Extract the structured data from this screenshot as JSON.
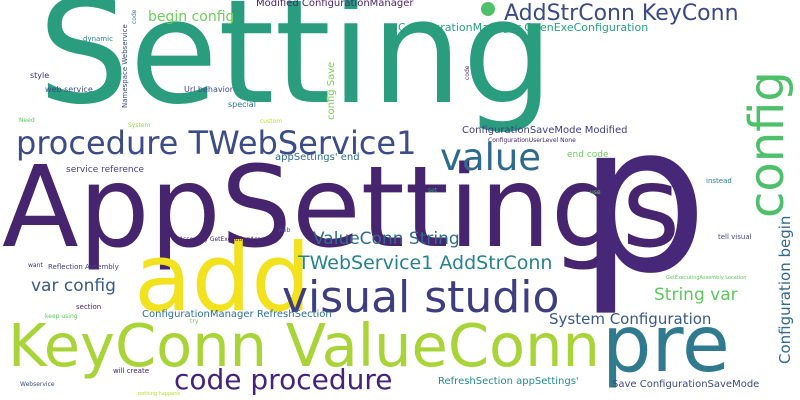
{
  "words": [
    {
      "text": "Setting",
      "color": "#2a9d7f"
    },
    {
      "text": "AppSettings",
      "color": "#46246e"
    },
    {
      "text": "p",
      "color": "#472878"
    },
    {
      "text": "add",
      "color": "#f2e11d"
    },
    {
      "text": "KeyConn ValueConn",
      "color": "#a8d437"
    },
    {
      "text": "pre",
      "color": "#2f7a8e"
    },
    {
      "text": "config",
      "color": "#4fc06a"
    },
    {
      "text": "visual studio",
      "color": "#3e3d80"
    },
    {
      "text": "value",
      "color": "#2d6a8e"
    },
    {
      "text": "procedure TWebService1",
      "color": "#3b4c86"
    },
    {
      "text": "code procedure",
      "color": "#45237a"
    },
    {
      "text": "AddStrConn KeyConn",
      "color": "#3b4a85"
    },
    {
      "text": "TWebService1 AddStrConn",
      "color": "#26838e"
    },
    {
      "text": "ValueConn String",
      "color": "#2f6b8e"
    },
    {
      "text": "String var",
      "color": "#5ec75e"
    },
    {
      "text": "var config",
      "color": "#38598c"
    },
    {
      "text": "System Configuration",
      "color": "#38598c"
    },
    {
      "text": "Configuration begin",
      "color": "#306a8e"
    },
    {
      "text": "begin config",
      "color": "#6ccd5a"
    },
    {
      "text": "ConfigurationManager OpenExeConfiguration",
      "color": "#27a17e"
    },
    {
      "text": "Modified ConfigurationManager",
      "color": "#46246e"
    },
    {
      "text": "ConfigurationSaveMode Modified",
      "color": "#3e3d80"
    },
    {
      "text": "ConfigurationManager RefreshSection",
      "color": "#2c728e"
    },
    {
      "text": "RefreshSection appSettings'",
      "color": "#23898e"
    },
    {
      "text": "Save ConfigurationSaveMode",
      "color": "#3b4a85"
    },
    {
      "text": "appSettings' end",
      "color": "#2f6b8e"
    },
    {
      "text": "config Save",
      "color": "#7ad151"
    },
    {
      "text": "end code",
      "color": "#6ccd5a"
    },
    {
      "text": "service reference",
      "color": "#433e85"
    },
    {
      "text": "Url behavior",
      "color": "#3e4a89"
    },
    {
      "text": "special",
      "color": "#2a788e"
    },
    {
      "text": "custom",
      "color": "#b5de2b"
    },
    {
      "text": "ConfigurationUserLevel None",
      "color": "#46246e"
    },
    {
      "text": "Namespace Webservice",
      "color": "#3b4a85"
    },
    {
      "text": "web service",
      "color": "#3b4c86"
    },
    {
      "text": "dynamic",
      "color": "#26828e"
    },
    {
      "text": "style",
      "color": "#3b2f72"
    },
    {
      "text": "Need",
      "color": "#5ec75e"
    },
    {
      "text": "System",
      "color": "#8fd744"
    },
    {
      "text": "code",
      "color": "#46246e"
    },
    {
      "text": "code",
      "color": "#2a788e"
    },
    {
      "text": "instead",
      "color": "#26828e"
    },
    {
      "text": "tell visual",
      "color": "#3e4a89"
    },
    {
      "text": "set",
      "color": "#2a9d7f"
    },
    {
      "text": "use",
      "color": "#5ec75e"
    },
    {
      "text": "Assembly GetExecutingAssembly",
      "color": "#46246e"
    },
    {
      "text": "web",
      "color": "#3e4a89"
    },
    {
      "text": "want",
      "color": "#46246e"
    },
    {
      "text": "Reflection Assembly",
      "color": "#433e85"
    },
    {
      "text": "GetExecutingAssembly Location",
      "color": "#5ec75e"
    },
    {
      "text": "section",
      "color": "#46246e"
    },
    {
      "text": "keep using",
      "color": "#5ec75e"
    },
    {
      "text": "try",
      "color": "#6ccd5a"
    },
    {
      "text": "will create",
      "color": "#46246e"
    },
    {
      "text": "nothing happens",
      "color": "#b5de2b"
    },
    {
      "text": "Webservice",
      "color": "#3b4a85"
    }
  ]
}
